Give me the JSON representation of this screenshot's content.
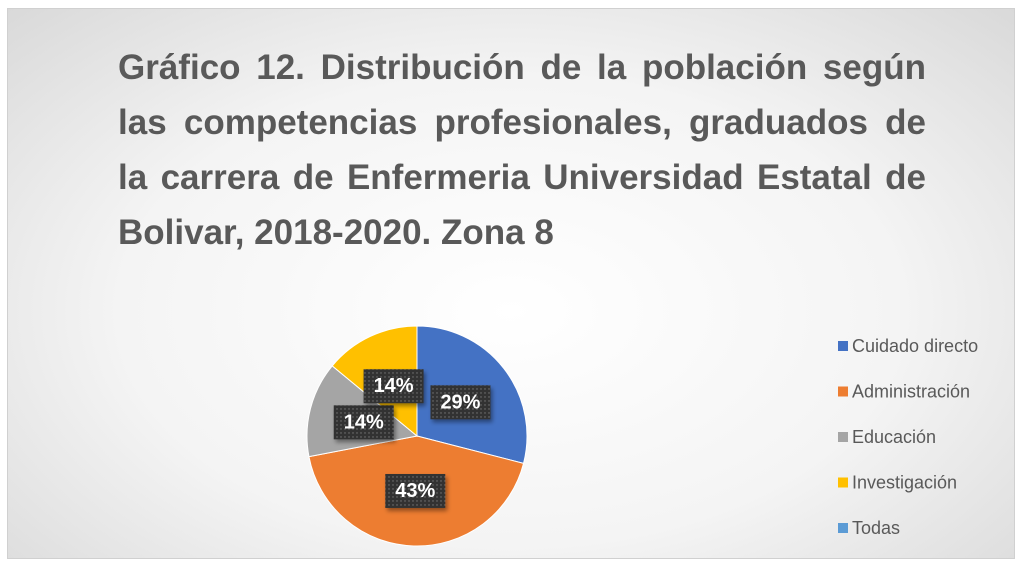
{
  "chart_data": {
    "type": "pie",
    "title": "Gráfico 12. Distribución de la población según las competencias profesionales, graduados de la carrera de Enfermeria Universidad Estatal de Bolivar, 2018-2020. Zona 8",
    "categories": [
      "Cuidado directo",
      "Administración",
      "Educación",
      "Investigación",
      "Todas"
    ],
    "values": [
      29,
      43,
      14,
      14,
      0
    ],
    "value_labels": [
      "29%",
      "43%",
      "14%",
      "14%",
      null
    ],
    "colors": [
      "#4472c4",
      "#ed7d31",
      "#a5a5a5",
      "#ffc000",
      "#5b9bd5"
    ],
    "legend": "right"
  }
}
